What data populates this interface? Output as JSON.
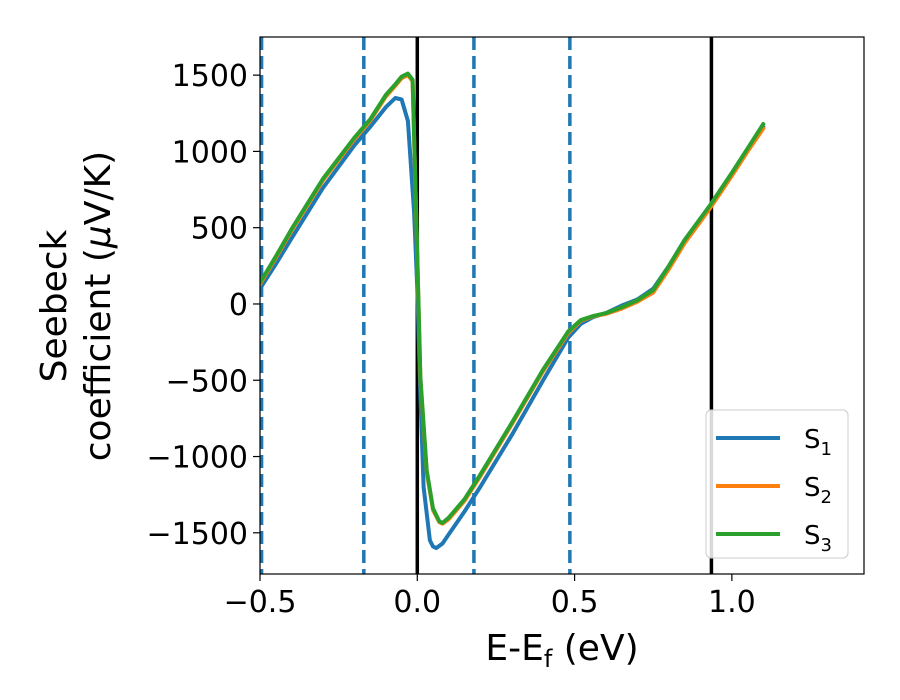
{
  "chart_data": {
    "type": "line",
    "xlabel": {
      "main": "E-E",
      "sub": "f",
      "unit": " (eV)"
    },
    "ylabel": {
      "line1": "Seebeck",
      "line2_prefix": "coefficient  (",
      "mu": "μ",
      "line2_suffix": "V/K)"
    },
    "xlim": [
      -0.5,
      1.42
    ],
    "ylim": [
      -1770,
      1750
    ],
    "xticks": [
      -0.5,
      0.0,
      0.5,
      1.0
    ],
    "xtick_labels": [
      "−0.5",
      "0.0",
      "0.5",
      "1.0"
    ],
    "yticks": [
      -1500,
      -1000,
      -500,
      0,
      500,
      1000,
      1500
    ],
    "ytick_labels": [
      "−1500",
      "−1000",
      "−500",
      "0",
      "500",
      "1000",
      "1500"
    ],
    "grid": false,
    "legend_position": "bottom-right",
    "vlines_solid": [
      0.0,
      0.935
    ],
    "vlines_dashed": [
      -0.495,
      -0.17,
      0.18,
      0.485
    ],
    "series": [
      {
        "name": "S",
        "sub": "1",
        "color": "#1f77b4",
        "points": [
          [
            -0.5,
            100
          ],
          [
            -0.45,
            260
          ],
          [
            -0.4,
            430
          ],
          [
            -0.3,
            760
          ],
          [
            -0.2,
            1040
          ],
          [
            -0.15,
            1160
          ],
          [
            -0.1,
            1290
          ],
          [
            -0.07,
            1350
          ],
          [
            -0.05,
            1340
          ],
          [
            -0.03,
            1200
          ],
          [
            -0.01,
            600
          ],
          [
            0.0,
            100
          ],
          [
            0.01,
            -600
          ],
          [
            0.02,
            -1200
          ],
          [
            0.04,
            -1550
          ],
          [
            0.05,
            -1590
          ],
          [
            0.06,
            -1600
          ],
          [
            0.08,
            -1570
          ],
          [
            0.1,
            -1510
          ],
          [
            0.15,
            -1360
          ],
          [
            0.2,
            -1200
          ],
          [
            0.3,
            -860
          ],
          [
            0.4,
            -500
          ],
          [
            0.48,
            -220
          ],
          [
            0.52,
            -130
          ],
          [
            0.56,
            -85
          ],
          [
            0.6,
            -60
          ],
          [
            0.65,
            -10
          ],
          [
            0.7,
            30
          ],
          [
            0.75,
            100
          ],
          [
            0.8,
            250
          ],
          [
            0.85,
            420
          ],
          [
            0.9,
            560
          ],
          [
            0.93,
            640
          ],
          [
            1.0,
            850
          ],
          [
            1.05,
            1010
          ],
          [
            1.1,
            1160
          ]
        ]
      },
      {
        "name": "S",
        "sub": "2",
        "color": "#ff7f0e",
        "points": [
          [
            -0.5,
            130
          ],
          [
            -0.45,
            300
          ],
          [
            -0.4,
            480
          ],
          [
            -0.3,
            810
          ],
          [
            -0.2,
            1080
          ],
          [
            -0.15,
            1200
          ],
          [
            -0.1,
            1360
          ],
          [
            -0.07,
            1430
          ],
          [
            -0.05,
            1480
          ],
          [
            -0.03,
            1500
          ],
          [
            -0.015,
            1460
          ],
          [
            0.0,
            300
          ],
          [
            0.01,
            -500
          ],
          [
            0.03,
            -1100
          ],
          [
            0.05,
            -1350
          ],
          [
            0.07,
            -1430
          ],
          [
            0.08,
            -1440
          ],
          [
            0.1,
            -1410
          ],
          [
            0.15,
            -1290
          ],
          [
            0.2,
            -1130
          ],
          [
            0.3,
            -790
          ],
          [
            0.4,
            -440
          ],
          [
            0.48,
            -190
          ],
          [
            0.52,
            -110
          ],
          [
            0.56,
            -80
          ],
          [
            0.6,
            -65
          ],
          [
            0.65,
            -30
          ],
          [
            0.7,
            15
          ],
          [
            0.75,
            75
          ],
          [
            0.8,
            230
          ],
          [
            0.85,
            400
          ],
          [
            0.9,
            540
          ],
          [
            0.935,
            640
          ],
          [
            1.0,
            840
          ],
          [
            1.05,
            1000
          ],
          [
            1.1,
            1150
          ]
        ]
      },
      {
        "name": "S",
        "sub": "3",
        "color": "#2ca02c",
        "points": [
          [
            -0.5,
            140
          ],
          [
            -0.45,
            310
          ],
          [
            -0.4,
            490
          ],
          [
            -0.3,
            820
          ],
          [
            -0.2,
            1090
          ],
          [
            -0.15,
            1210
          ],
          [
            -0.1,
            1370
          ],
          [
            -0.07,
            1440
          ],
          [
            -0.05,
            1490
          ],
          [
            -0.03,
            1510
          ],
          [
            -0.015,
            1470
          ],
          [
            0.0,
            320
          ],
          [
            0.01,
            -480
          ],
          [
            0.03,
            -1090
          ],
          [
            0.05,
            -1340
          ],
          [
            0.07,
            -1425
          ],
          [
            0.08,
            -1435
          ],
          [
            0.1,
            -1400
          ],
          [
            0.15,
            -1280
          ],
          [
            0.2,
            -1120
          ],
          [
            0.3,
            -780
          ],
          [
            0.4,
            -430
          ],
          [
            0.48,
            -180
          ],
          [
            0.52,
            -105
          ],
          [
            0.56,
            -78
          ],
          [
            0.6,
            -60
          ],
          [
            0.65,
            -22
          ],
          [
            0.7,
            25
          ],
          [
            0.75,
            90
          ],
          [
            0.8,
            250
          ],
          [
            0.85,
            420
          ],
          [
            0.9,
            560
          ],
          [
            0.935,
            660
          ],
          [
            1.0,
            860
          ],
          [
            1.05,
            1020
          ],
          [
            1.1,
            1180
          ]
        ]
      }
    ]
  }
}
